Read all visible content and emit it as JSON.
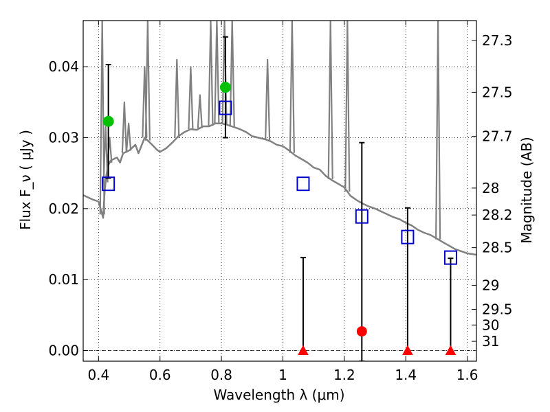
{
  "chart_data": {
    "type": "scatter",
    "xlabel": "Wavelength  λ (μm)",
    "ylabel": "Flux  F_ν  ( μJy )",
    "ylabel_right": "Magnitude (AB)",
    "xlim": [
      0.35,
      1.63
    ],
    "ylim": [
      -0.0015,
      0.0465
    ],
    "grid": true,
    "colors": {
      "template": "#808080",
      "green": "#00c000",
      "square": "#0000cc",
      "red": "#ff0000",
      "errorbar": "#000000"
    },
    "x_ticks": [
      {
        "value": 0.4,
        "label": "0.4"
      },
      {
        "value": 0.6,
        "label": "0.6"
      },
      {
        "value": 0.8,
        "label": "0.8"
      },
      {
        "value": 1.0,
        "label": "1"
      },
      {
        "value": 1.2,
        "label": "1.2"
      },
      {
        "value": 1.4,
        "label": "1.4"
      },
      {
        "value": 1.6,
        "label": "1.6"
      }
    ],
    "y_ticks": [
      {
        "value": 0.0,
        "label": "0.00"
      },
      {
        "value": 0.01,
        "label": "0.01"
      },
      {
        "value": 0.02,
        "label": "0.02"
      },
      {
        "value": 0.03,
        "label": "0.03"
      },
      {
        "value": 0.04,
        "label": "0.04"
      }
    ],
    "mag_ticks": [
      {
        "value": 0.0437,
        "label": "27.3"
      },
      {
        "value": 0.0364,
        "label": "27.5"
      },
      {
        "value": 0.0302,
        "label": "27.7"
      },
      {
        "value": 0.0229,
        "label": "28"
      },
      {
        "value": 0.0191,
        "label": "28.2"
      },
      {
        "value": 0.0145,
        "label": "28.5"
      },
      {
        "value": 0.0092,
        "label": "29"
      },
      {
        "value": 0.0058,
        "label": "29.5"
      },
      {
        "value": 0.0036,
        "label": "30"
      },
      {
        "value": 0.0013,
        "label": "31"
      }
    ],
    "template_spectrum": [
      [
        0.35,
        0.0219
      ],
      [
        0.38,
        0.0213
      ],
      [
        0.4,
        0.021
      ],
      [
        0.41,
        0.0195
      ],
      [
        0.415,
        0.0187
      ],
      [
        0.42,
        0.0225
      ],
      [
        0.425,
        0.0245
      ],
      [
        0.43,
        0.026
      ],
      [
        0.44,
        0.0268
      ],
      [
        0.46,
        0.0272
      ],
      [
        0.47,
        0.0265
      ],
      [
        0.48,
        0.0278
      ],
      [
        0.5,
        0.0282
      ],
      [
        0.52,
        0.029
      ],
      [
        0.53,
        0.0278
      ],
      [
        0.55,
        0.03
      ],
      [
        0.57,
        0.0292
      ],
      [
        0.59,
        0.0283
      ],
      [
        0.6,
        0.028
      ],
      [
        0.62,
        0.0285
      ],
      [
        0.64,
        0.0293
      ],
      [
        0.66,
        0.0302
      ],
      [
        0.68,
        0.0308
      ],
      [
        0.7,
        0.0312
      ],
      [
        0.72,
        0.0311
      ],
      [
        0.74,
        0.0316
      ],
      [
        0.76,
        0.0316
      ],
      [
        0.78,
        0.032
      ],
      [
        0.8,
        0.032
      ],
      [
        0.82,
        0.0318
      ],
      [
        0.84,
        0.0315
      ],
      [
        0.86,
        0.0312
      ],
      [
        0.88,
        0.0308
      ],
      [
        0.9,
        0.0302
      ],
      [
        0.92,
        0.03
      ],
      [
        0.94,
        0.0298
      ],
      [
        0.96,
        0.0295
      ],
      [
        0.98,
        0.029
      ],
      [
        1.0,
        0.0288
      ],
      [
        1.02,
        0.0282
      ],
      [
        1.04,
        0.0275
      ],
      [
        1.06,
        0.027
      ],
      [
        1.08,
        0.0265
      ],
      [
        1.1,
        0.0258
      ],
      [
        1.12,
        0.0255
      ],
      [
        1.14,
        0.0246
      ],
      [
        1.16,
        0.024
      ],
      [
        1.18,
        0.0235
      ],
      [
        1.2,
        0.023
      ],
      [
        1.22,
        0.0218
      ],
      [
        1.24,
        0.0212
      ],
      [
        1.26,
        0.0207
      ],
      [
        1.28,
        0.0203
      ],
      [
        1.3,
        0.02
      ],
      [
        1.32,
        0.0196
      ],
      [
        1.34,
        0.0192
      ],
      [
        1.36,
        0.0188
      ],
      [
        1.38,
        0.0185
      ],
      [
        1.4,
        0.018
      ],
      [
        1.42,
        0.0176
      ],
      [
        1.44,
        0.017
      ],
      [
        1.46,
        0.0166
      ],
      [
        1.48,
        0.0163
      ],
      [
        1.5,
        0.0158
      ],
      [
        1.52,
        0.0153
      ],
      [
        1.54,
        0.0148
      ],
      [
        1.56,
        0.0143
      ],
      [
        1.58,
        0.014
      ],
      [
        1.6,
        0.0137
      ],
      [
        1.63,
        0.0135
      ]
    ],
    "template_lines": [
      [
        0.412,
        0.0465
      ],
      [
        0.423,
        0.0315
      ],
      [
        0.436,
        0.03
      ],
      [
        0.484,
        0.035
      ],
      [
        0.498,
        0.032
      ],
      [
        0.55,
        0.04
      ],
      [
        0.56,
        0.0465
      ],
      [
        0.655,
        0.041
      ],
      [
        0.7,
        0.04
      ],
      [
        0.73,
        0.036
      ],
      [
        0.765,
        0.0465
      ],
      [
        0.785,
        0.0465
      ],
      [
        0.81,
        0.0465
      ],
      [
        0.835,
        0.0465
      ],
      [
        0.95,
        0.041
      ],
      [
        1.03,
        0.0465
      ],
      [
        1.155,
        0.0465
      ],
      [
        1.21,
        0.0465
      ],
      [
        1.505,
        0.0465
      ]
    ],
    "green_circles": [
      {
        "x": 0.432,
        "y": 0.0323
      },
      {
        "x": 0.813,
        "y": 0.0371
      }
    ],
    "squares": [
      {
        "x": 0.432,
        "y": 0.0235
      },
      {
        "x": 0.813,
        "y": 0.0342
      },
      {
        "x": 1.066,
        "y": 0.0235
      },
      {
        "x": 1.257,
        "y": 0.0189
      },
      {
        "x": 1.406,
        "y": 0.016
      },
      {
        "x": 1.546,
        "y": 0.0131
      }
    ],
    "red_circles": [
      {
        "x": 1.257,
        "y": 0.0027
      }
    ],
    "red_triangles": [
      {
        "x": 1.066,
        "y": 0.0
      },
      {
        "x": 1.406,
        "y": 0.0
      },
      {
        "x": 1.546,
        "y": 0.0
      }
    ],
    "error_bars": [
      {
        "x": 0.432,
        "low": 0.0243,
        "high": 0.0403
      },
      {
        "x": 0.813,
        "low": 0.03,
        "high": 0.0442
      },
      {
        "x": 1.066,
        "low": 0.0,
        "high": 0.0131
      },
      {
        "x": 1.257,
        "low": -0.0015,
        "high": 0.0293
      },
      {
        "x": 1.406,
        "low": 0.0,
        "high": 0.0201
      },
      {
        "x": 1.546,
        "low": 0.0,
        "high": 0.013
      }
    ]
  }
}
